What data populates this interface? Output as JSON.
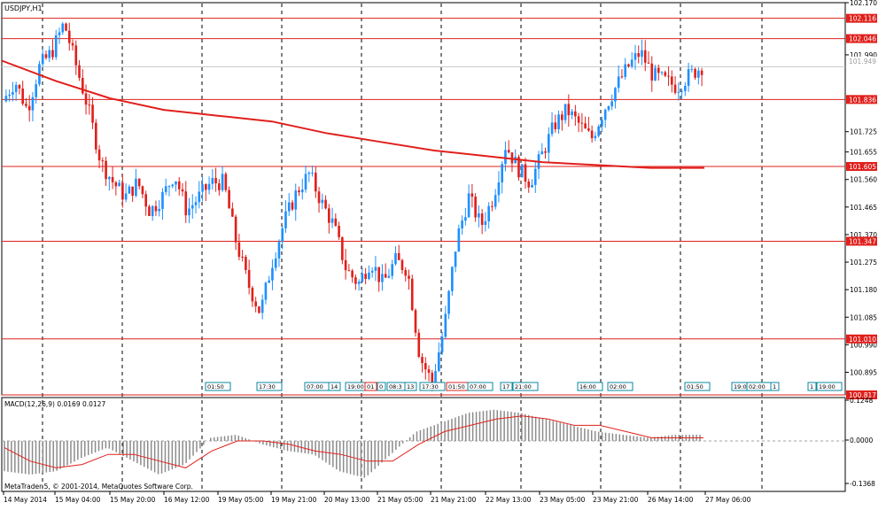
{
  "window": {
    "symbol_title": "USDJPY,H1",
    "copyright": "MetaTrader 5, © 2001-2014, MetaQuotes Software Corp."
  },
  "price_scale": {
    "ticks": [
      "102.170",
      "101.990",
      "101.725",
      "101.655",
      "101.560",
      "101.465",
      "101.370",
      "101.275",
      "101.180",
      "101.085",
      "100.990",
      "100.895"
    ],
    "current_price": "101.949"
  },
  "levels": [
    {
      "price": "102.116",
      "value": 102.116
    },
    {
      "price": "102.046",
      "value": 102.046
    },
    {
      "price": "101.836",
      "value": 101.836
    },
    {
      "price": "101.605",
      "value": 101.605
    },
    {
      "price": "101.347",
      "value": 101.347
    },
    {
      "price": "101.010",
      "value": 101.01
    },
    {
      "price": "100.817",
      "value": 100.817
    }
  ],
  "time_axis": [
    "14 May 2014",
    "15 May 04:00",
    "15 May 20:00",
    "16 May 12:00",
    "19 May 05:00",
    "19 May 21:00",
    "20 May 13:00",
    "21 May 05:00",
    "21 May 21:00",
    "22 May 13:00",
    "23 May 05:00",
    "23 May 21:00",
    "26 May 14:00",
    "27 May 06:00"
  ],
  "event_markers": [
    "01:50",
    "17:30",
    "07:00",
    "14",
    "19:00",
    "01",
    "0",
    "08:3",
    "13",
    "17:30",
    "01:50",
    "07:00",
    "17",
    "21:00",
    "16:00",
    "02:00",
    "01:50",
    "19:00",
    "02:00",
    "1",
    "1",
    "19:00"
  ],
  "macd": {
    "label": "MACD(12,26,9) 0.0169 0.0127",
    "scale": [
      "0.1248",
      "0.0000",
      "-0.1368"
    ]
  },
  "colors": {
    "bull": "#1e90ff",
    "bear": "#e0201c",
    "level": "#e0201c",
    "ma": "#e0201c",
    "macd_hist": "#8c8c8c",
    "macd_signal": "#e0201c"
  },
  "chart_data": {
    "type": "candlestick",
    "symbol": "USDJPY",
    "timeframe": "H1",
    "ylim": [
      100.817,
      102.17
    ],
    "close_path": [
      101.83,
      101.9,
      101.8,
      101.95,
      102.0,
      102.1,
      101.95,
      101.8,
      101.62,
      101.55,
      101.5,
      101.55,
      101.45,
      101.5,
      101.58,
      101.45,
      101.5,
      101.55,
      101.55,
      101.35,
      101.2,
      101.1,
      101.28,
      101.42,
      101.52,
      101.58,
      101.48,
      101.4,
      101.25,
      101.2,
      101.28,
      101.2,
      101.28,
      101.25,
      100.95,
      100.86,
      101.05,
      101.35,
      101.5,
      101.4,
      101.5,
      101.68,
      101.6,
      101.55,
      101.65,
      101.75,
      101.8,
      101.75,
      101.7,
      101.8,
      101.88,
      101.95,
      102.0,
      101.92,
      101.9,
      101.88,
      101.92,
      101.95
    ],
    "ma_path": [
      101.97,
      101.9,
      101.84,
      101.8,
      101.78,
      101.76,
      101.72,
      101.69,
      101.66,
      101.64,
      101.62,
      101.61,
      101.6,
      101.6
    ],
    "macd_hist_path": [
      -0.09,
      -0.1,
      -0.09,
      -0.05,
      -0.02,
      -0.06,
      -0.1,
      -0.07,
      0.01,
      0.02,
      -0.01,
      -0.03,
      -0.04,
      -0.09,
      -0.11,
      -0.04,
      0.03,
      0.06,
      0.09,
      0.1,
      0.09,
      0.07,
      0.05,
      0.03,
      0.02,
      0.01,
      0.02,
      0.02
    ],
    "macd_signal_path": [
      -0.02,
      -0.06,
      -0.08,
      -0.07,
      -0.04,
      -0.04,
      -0.06,
      -0.08,
      -0.03,
      0.0,
      0.0,
      -0.01,
      -0.03,
      -0.04,
      -0.06,
      -0.06,
      -0.01,
      0.03,
      0.05,
      0.07,
      0.08,
      0.07,
      0.05,
      0.05,
      0.03,
      0.01,
      0.01,
      0.01
    ]
  }
}
